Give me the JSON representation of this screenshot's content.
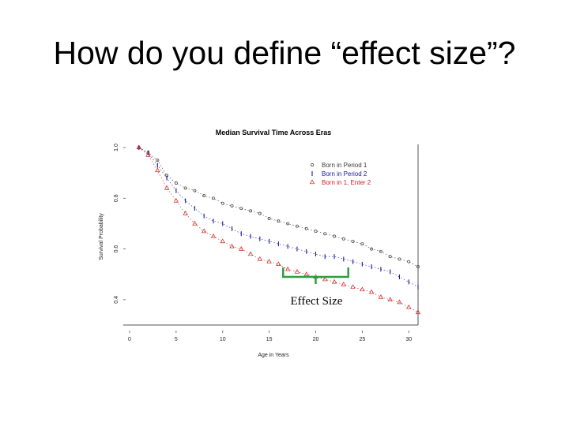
{
  "slide": {
    "title": "How do you define “effect size”?"
  },
  "colors": {
    "period1": "#3a3a3a",
    "period2": "#1a1aa0",
    "enter2": "#d02020",
    "bracket": "#2e9e3e",
    "axis": "#555555"
  },
  "chart_data": {
    "type": "scatter",
    "title": "Median Survival Time Across Eras",
    "xlabel": "Age in Years",
    "ylabel": "Survival Probability",
    "xlim": [
      0,
      31
    ],
    "ylim": [
      0.3,
      1.0
    ],
    "xticks": [
      0,
      5,
      10,
      15,
      20,
      25,
      30
    ],
    "yticks": [
      0.4,
      0.6,
      0.8,
      1.0
    ],
    "grid": false,
    "legend_position": "top-right",
    "series": [
      {
        "name": "Born in Period 1",
        "marker": "circle",
        "x": [
          1,
          2,
          3,
          4,
          5,
          6,
          7,
          8,
          9,
          10,
          11,
          12,
          13,
          14,
          15,
          16,
          17,
          18,
          19,
          20,
          21,
          22,
          23,
          24,
          25,
          26,
          27,
          28,
          29,
          30,
          31
        ],
        "y": [
          1.0,
          0.98,
          0.95,
          0.89,
          0.86,
          0.84,
          0.83,
          0.81,
          0.8,
          0.78,
          0.77,
          0.76,
          0.75,
          0.74,
          0.72,
          0.71,
          0.7,
          0.69,
          0.68,
          0.67,
          0.66,
          0.65,
          0.64,
          0.63,
          0.62,
          0.6,
          0.59,
          0.57,
          0.56,
          0.55,
          0.53
        ]
      },
      {
        "name": "Born in Period 2",
        "marker": "dash",
        "x": [
          1,
          2,
          3,
          4,
          5,
          6,
          7,
          8,
          9,
          10,
          11,
          12,
          13,
          14,
          15,
          16,
          17,
          18,
          19,
          20,
          21,
          22,
          23,
          24,
          25,
          26,
          27,
          28,
          29,
          30,
          31
        ],
        "y": [
          1.0,
          0.98,
          0.93,
          0.88,
          0.83,
          0.79,
          0.76,
          0.73,
          0.71,
          0.7,
          0.68,
          0.66,
          0.65,
          0.64,
          0.63,
          0.62,
          0.61,
          0.6,
          0.59,
          0.58,
          0.57,
          0.57,
          0.56,
          0.55,
          0.54,
          0.53,
          0.52,
          0.51,
          0.49,
          0.47,
          0.45
        ]
      },
      {
        "name": "Born in 1, Enter 2",
        "marker": "triangle",
        "x": [
          1,
          2,
          3,
          4,
          5,
          6,
          7,
          8,
          9,
          10,
          11,
          12,
          13,
          14,
          15,
          16,
          17,
          18,
          19,
          20,
          21,
          22,
          23,
          24,
          25,
          26,
          27,
          28,
          29,
          30,
          31
        ],
        "y": [
          1.0,
          0.97,
          0.91,
          0.84,
          0.79,
          0.74,
          0.7,
          0.67,
          0.65,
          0.63,
          0.61,
          0.6,
          0.58,
          0.56,
          0.55,
          0.54,
          0.52,
          0.51,
          0.5,
          0.49,
          0.48,
          0.47,
          0.46,
          0.45,
          0.44,
          0.43,
          0.41,
          0.4,
          0.39,
          0.37,
          0.35
        ]
      }
    ],
    "annotation": {
      "text": "Effect Size",
      "x_from": 16.5,
      "x_to": 23.5,
      "y": 0.48
    }
  }
}
